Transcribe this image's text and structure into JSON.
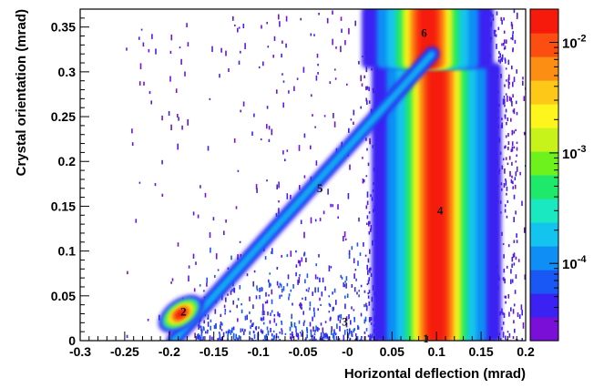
{
  "chart_data": {
    "type": "heatmap",
    "title": "",
    "xlabel": "Horizontal deflection (mrad)",
    "ylabel": "Crystal orientation (mrad)",
    "xlim": [
      -0.3,
      0.2
    ],
    "ylim": [
      0,
      0.37
    ],
    "x_ticks": [
      {
        "value": -0.3,
        "label": "-0.3"
      },
      {
        "value": -0.25,
        "label": "-0.25"
      },
      {
        "value": -0.2,
        "label": "-0.2"
      },
      {
        "value": -0.15,
        "label": "-0.15"
      },
      {
        "value": -0.1,
        "label": "-0.1"
      },
      {
        "value": -0.05,
        "label": "-0.05"
      },
      {
        "value": 0,
        "label": "-0"
      },
      {
        "value": 0.05,
        "label": "0.05"
      },
      {
        "value": 0.1,
        "label": "0.1"
      },
      {
        "value": 0.15,
        "label": "0.15"
      },
      {
        "value": 0.2,
        "label": "0.2"
      }
    ],
    "y_ticks": [
      {
        "value": 0,
        "label": "0"
      },
      {
        "value": 0.05,
        "label": "0.05"
      },
      {
        "value": 0.1,
        "label": "0.1"
      },
      {
        "value": 0.15,
        "label": "0.15"
      },
      {
        "value": 0.2,
        "label": "0.2"
      },
      {
        "value": 0.25,
        "label": "0.25"
      },
      {
        "value": 0.3,
        "label": "0.3"
      },
      {
        "value": 0.35,
        "label": "0.35"
      }
    ],
    "colorbar": {
      "scale": "log",
      "range": [
        2e-05,
        0.02
      ],
      "ticks": [
        {
          "value": 0.0001,
          "base": "10",
          "exp": "-4"
        },
        {
          "value": 0.001,
          "base": "10",
          "exp": "-3"
        },
        {
          "value": 0.01,
          "base": "10",
          "exp": "-2"
        }
      ],
      "colors": [
        "#7a10d8",
        "#3b22f2",
        "#1a58f5",
        "#0f8ff5",
        "#12c4ee",
        "#19e8c0",
        "#1fe96a",
        "#6df21e",
        "#c8f31a",
        "#fdf51c",
        "#fdc818",
        "#fc8e13",
        "#fb4e10",
        "#f51a0c"
      ]
    },
    "region_labels": [
      {
        "text": "1",
        "x": 0.088,
        "y": 0.002
      },
      {
        "text": "2",
        "x": -0.184,
        "y": 0.032
      },
      {
        "text": "3",
        "x": -0.003,
        "y": 0.021
      },
      {
        "text": "4",
        "x": 0.104,
        "y": 0.145
      },
      {
        "text": "5",
        "x": -0.031,
        "y": 0.17
      },
      {
        "text": "6",
        "x": 0.086,
        "y": 0.343
      }
    ],
    "features": {
      "amorphous_band": {
        "x_center": 0.1,
        "half_width": 0.028,
        "y_range": [
          0,
          0.31
        ]
      },
      "high_angle_band": {
        "x_center": 0.09,
        "half_width": 0.03,
        "y_range": [
          0.31,
          0.37
        ]
      },
      "volume_reflection": {
        "x_start": -0.195,
        "x_end": 0.095,
        "y_start": 0.0,
        "y_end": 0.32
      },
      "channeling_spot": {
        "x": -0.187,
        "y": 0.03
      },
      "dechanneling_tail": {
        "x_start": -0.16,
        "x_end": 0.08,
        "y": 0.021
      }
    },
    "grid": false,
    "legend": "none"
  }
}
